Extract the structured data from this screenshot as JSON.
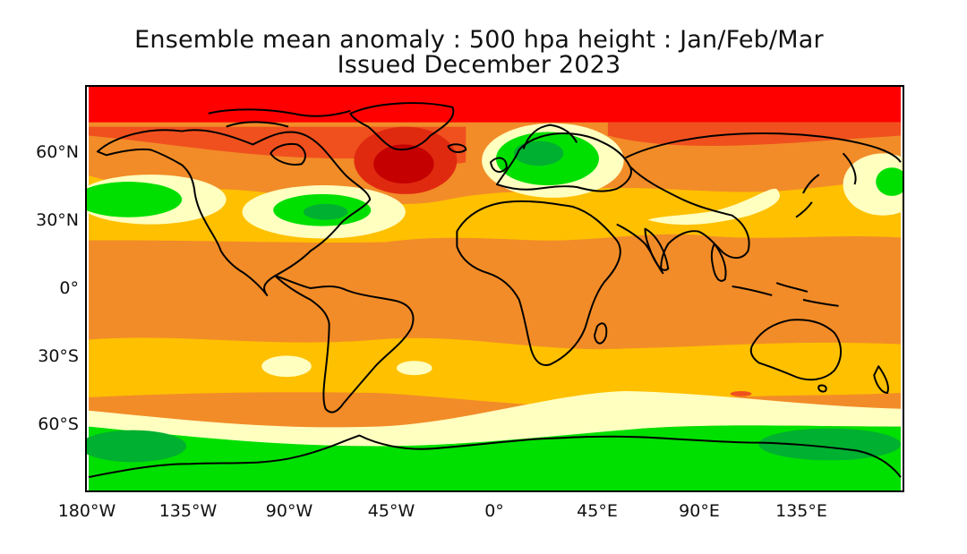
{
  "title_line1": "Ensemble mean anomaly : 500 hpa height : Jan/Feb/Mar",
  "title_line2": "Issued December 2023",
  "axes": {
    "y_ticks": [
      "60°N",
      "30°N",
      "0°",
      "30°S",
      "60°S"
    ],
    "x_ticks": [
      "180°W",
      "135°W",
      "90°W",
      "45°W",
      "0°",
      "45°E",
      "90°E",
      "135°E"
    ]
  },
  "map": {
    "projection": "equirectangular",
    "lon_range": [
      -180,
      180
    ],
    "lat_range": [
      -90,
      90
    ],
    "colors": {
      "strong_positive": "#ff0000",
      "deep_red": "#c40000",
      "positive_high": "#f0501e",
      "positive": "#f28c28",
      "weak_positive": "#ffc000",
      "near_zero": "#ffffc0",
      "negative": "#00e000",
      "strong_negative": "#00b030",
      "coastline": "#000000"
    }
  }
}
